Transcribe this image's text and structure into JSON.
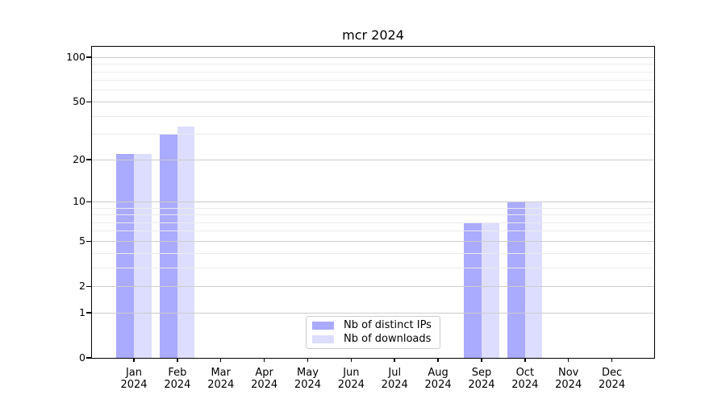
{
  "title": "mcr 2024",
  "chart_data": {
    "type": "bar",
    "title": "mcr 2024",
    "categories": [
      "Jan",
      "Feb",
      "Mar",
      "Apr",
      "May",
      "Jun",
      "Jul",
      "Aug",
      "Sep",
      "Oct",
      "Nov",
      "Dec"
    ],
    "x_year_line": "2024",
    "series": [
      {
        "name": "Nb of distinct IPs",
        "color": "#aaaaff",
        "values": [
          22,
          30,
          0,
          0,
          0,
          0,
          0,
          0,
          7,
          10,
          0,
          0
        ]
      },
      {
        "name": "Nb of downloads",
        "color": "#ddddff",
        "values": [
          22,
          34,
          0,
          0,
          0,
          0,
          0,
          0,
          7,
          10,
          0,
          0
        ]
      }
    ],
    "yscale": "log1p",
    "ylim": [
      0,
      118
    ],
    "y_ticks": [
      100,
      50,
      20,
      10,
      5,
      2,
      1,
      0
    ],
    "y_major_gridlines": [
      1,
      2,
      5,
      10,
      20,
      50,
      100
    ],
    "y_minor_gridlines": [
      3,
      4,
      6,
      7,
      8,
      9,
      30,
      40,
      60,
      70,
      80,
      90
    ],
    "grid": true,
    "legend_position": "bottom-center"
  },
  "colors": {
    "bar_distinct_ips": "#aaaaff",
    "bar_downloads": "#ddddff",
    "grid_major": "#cccccc",
    "grid_minor": "#ebebeb",
    "spine": "#000000",
    "background": "#ffffff"
  }
}
